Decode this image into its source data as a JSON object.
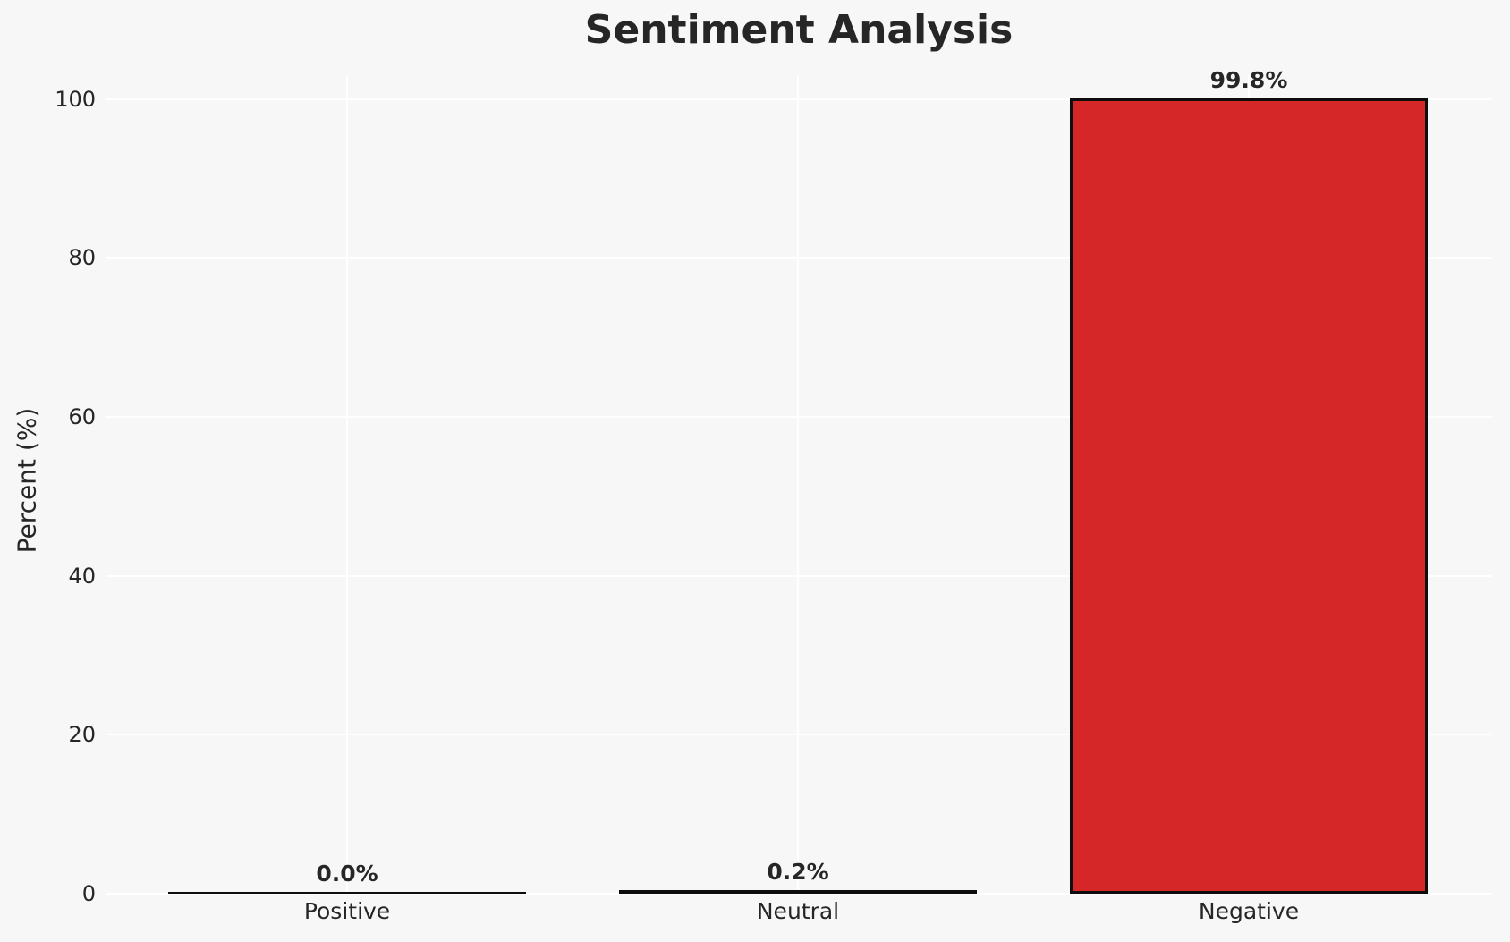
{
  "chart_data": {
    "type": "bar",
    "title": "Sentiment Analysis",
    "xlabel": "",
    "ylabel": "Percent (%)",
    "categories": [
      "Positive",
      "Neutral",
      "Negative"
    ],
    "values": [
      0.0,
      0.2,
      99.8
    ],
    "bar_labels": [
      "0.0%",
      "0.2%",
      "99.8%"
    ],
    "yticks": [
      0,
      20,
      40,
      60,
      80,
      100
    ],
    "ylim": [
      0,
      103
    ],
    "grid": "white horizontal gridlines at each y tick and vertical gridline at each category center",
    "legend": false,
    "colors": {
      "background": "#f7f7f7",
      "gridline": "#ffffff",
      "bar_fill": "#d62728",
      "bar_edge": "#0d0d0d",
      "text": "#262626"
    }
  }
}
